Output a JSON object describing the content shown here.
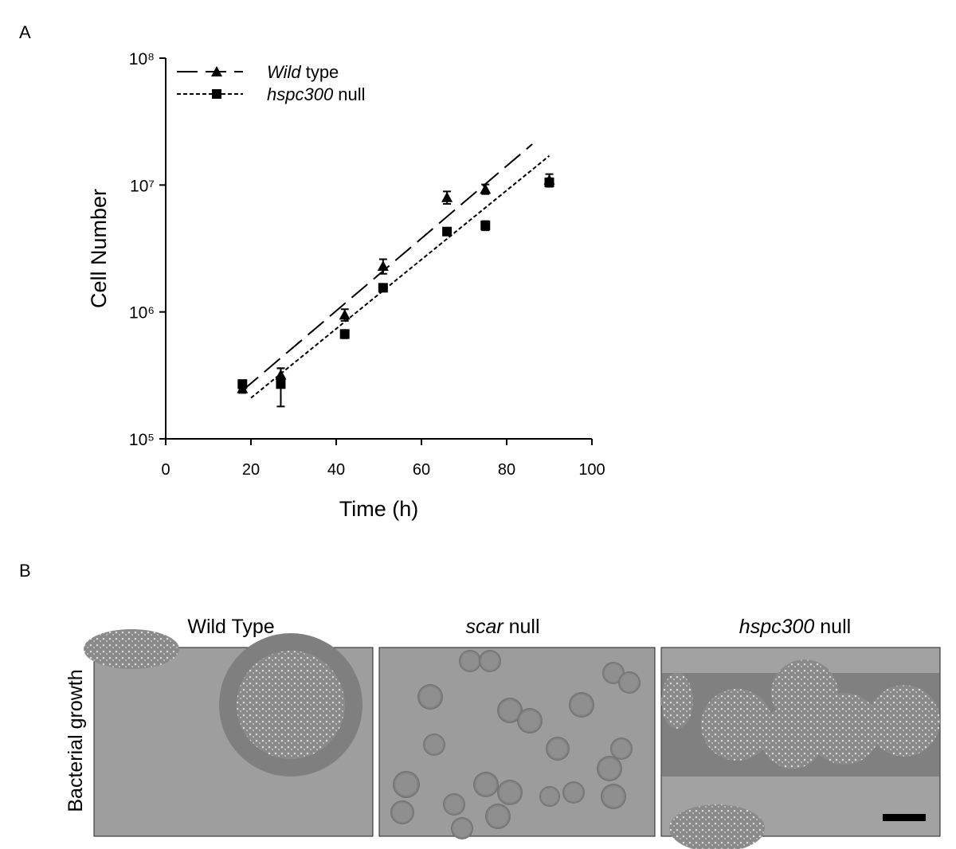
{
  "panel_labels": [
    "A",
    "B"
  ],
  "chart_data": {
    "type": "scatter",
    "log_y": true,
    "x_label": "Time (h)",
    "y_label": "Cell Number",
    "xlim": [
      0,
      100
    ],
    "xticks": [
      0,
      20,
      40,
      60,
      80,
      100
    ],
    "ylim": [
      100000,
      100000000
    ],
    "yticks": [
      {
        "value": 100000,
        "label": "10⁵"
      },
      {
        "value": 1000000,
        "label": "10⁶"
      },
      {
        "value": 10000000,
        "label": "10⁷"
      },
      {
        "value": 100000000,
        "label": "10⁸"
      }
    ],
    "legend": "upper left",
    "series": [
      {
        "name": "Wild type",
        "color": "#000000",
        "marker": "triangle",
        "line_style": "dashed",
        "x": [
          18,
          27,
          42,
          51,
          66,
          75,
          90
        ],
        "values": [
          250000,
          320000,
          950000,
          2300000,
          8000000,
          9300000,
          11000000
        ],
        "errors": [
          20000,
          40000,
          100000,
          300000,
          900000,
          800000,
          1200000
        ],
        "fit": {
          "x": [
            18,
            86
          ],
          "values": [
            240000,
            21000000
          ]
        }
      },
      {
        "name": "hspc300 null",
        "color": "#000000",
        "marker": "square",
        "line_style": "dotted",
        "x": [
          18,
          27,
          42,
          51,
          66,
          75,
          90
        ],
        "values": [
          270000,
          270000,
          670000,
          1550000,
          4300000,
          4800000,
          10500000
        ],
        "errors": [
          20000,
          90000,
          50000,
          100000,
          200000,
          400000,
          800000
        ],
        "fit": {
          "x": [
            20,
            90
          ],
          "values": [
            210000,
            17000000
          ]
        }
      }
    ]
  },
  "panel_b": {
    "y_label": "Bacterial growth",
    "titles": [
      "Wild Type",
      "scar null",
      "hspc300 null"
    ]
  }
}
